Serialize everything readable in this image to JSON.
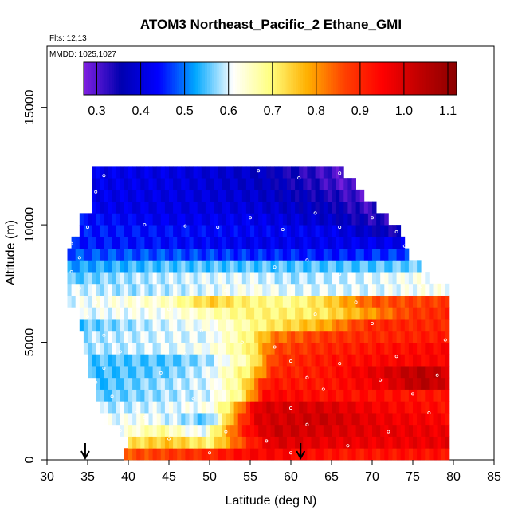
{
  "chart_data": {
    "type": "heatmap",
    "title": "ATOM3 Northeast_Pacific_2 Ethane_GMI",
    "annotations": {
      "flights": "Flts: 12,13",
      "dates": "MMDD: 1025,1027"
    },
    "xlabel": "Latitude (deg N)",
    "ylabel": "Altitude (m)",
    "xlim": [
      30,
      85
    ],
    "ylim": [
      0,
      17600
    ],
    "x_ticks": [
      30,
      35,
      40,
      45,
      50,
      55,
      60,
      65,
      70,
      75,
      80,
      85
    ],
    "y_ticks": [
      0,
      5000,
      10000,
      15000
    ],
    "colorbar": {
      "range": [
        0.27,
        1.12
      ],
      "tick_labels": [
        "0.3",
        "0.4",
        "0.5",
        "0.6",
        "0.7",
        "0.8",
        "0.9",
        "1.0",
        "1.1"
      ],
      "tick_values": [
        0.3,
        0.4,
        0.5,
        0.6,
        0.7,
        0.8,
        0.9,
        1.0,
        1.1
      ],
      "colors": [
        "#8020e0",
        "#0000b0",
        "#0000ff",
        "#00a8ff",
        "#ffffff",
        "#ffff80",
        "#ffb000",
        "#ff4000",
        "#ff0000",
        "#c00000",
        "#8b0000"
      ]
    },
    "arrow_markers_lat": [
      34.7,
      61.2
    ],
    "altitude_bins_m": [
      0,
      500,
      1000,
      1500,
      2000,
      2500,
      3000,
      3500,
      4000,
      4500,
      5000,
      5500,
      6000,
      6500,
      7000,
      7500,
      8000,
      8500,
      9000,
      9500,
      10000,
      10500,
      11000,
      11500,
      12000,
      12500
    ],
    "lat_extent_by_bin": [
      [
        39.5,
        79.5
      ],
      [
        40.0,
        79.5
      ],
      [
        39.0,
        79.5
      ],
      [
        37.0,
        79.5
      ],
      [
        36.5,
        79.5
      ],
      [
        36.0,
        79.5
      ],
      [
        36.0,
        79.5
      ],
      [
        35.0,
        79.5
      ],
      [
        35.0,
        79.5
      ],
      [
        34.5,
        79.5
      ],
      [
        34.5,
        79.5
      ],
      [
        34.0,
        79.5
      ],
      [
        34.0,
        79.5
      ],
      [
        32.5,
        79.5
      ],
      [
        32.5,
        79.5
      ],
      [
        32.5,
        77.0
      ],
      [
        32.5,
        76.0
      ],
      [
        32.5,
        74.5
      ],
      [
        33.0,
        74.0
      ],
      [
        34.0,
        73.5
      ],
      [
        34.0,
        72.0
      ],
      [
        35.5,
        70.5
      ],
      [
        35.5,
        69.0
      ],
      [
        35.5,
        68.0
      ],
      [
        35.5,
        66.5
      ]
    ],
    "value_profiles": [
      [
        [
          39.5,
          0.85
        ],
        [
          46,
          0.88
        ],
        [
          50,
          0.9
        ],
        [
          55,
          0.95
        ],
        [
          60,
          0.95
        ],
        [
          67,
          0.92
        ],
        [
          75,
          0.93
        ],
        [
          79.5,
          0.93
        ]
      ],
      [
        [
          40,
          0.72
        ],
        [
          45,
          0.76
        ],
        [
          50,
          0.7
        ],
        [
          55,
          0.9
        ],
        [
          58,
          1.0
        ],
        [
          64,
          0.98
        ],
        [
          72,
          0.97
        ],
        [
          79.5,
          0.98
        ]
      ],
      [
        [
          39,
          0.62
        ],
        [
          44,
          0.68
        ],
        [
          49,
          0.6
        ],
        [
          55,
          0.95
        ],
        [
          58,
          1.02
        ],
        [
          64,
          1.0
        ],
        [
          72,
          0.98
        ],
        [
          79.5,
          0.97
        ]
      ],
      [
        [
          37,
          0.6
        ],
        [
          42,
          0.62
        ],
        [
          47,
          0.58
        ],
        [
          50,
          0.55
        ],
        [
          53,
          0.8
        ],
        [
          56,
          1.0
        ],
        [
          64,
          1.02
        ],
        [
          72,
          0.97
        ],
        [
          79.5,
          0.95
        ]
      ],
      [
        [
          36.5,
          0.58
        ],
        [
          45,
          0.6
        ],
        [
          50,
          0.62
        ],
        [
          53,
          0.75
        ],
        [
          56,
          1.0
        ],
        [
          64,
          1.0
        ],
        [
          72,
          0.95
        ],
        [
          79.5,
          0.93
        ]
      ],
      [
        [
          36,
          0.55
        ],
        [
          45,
          0.58
        ],
        [
          50,
          0.6
        ],
        [
          54,
          0.7
        ],
        [
          57,
          0.95
        ],
        [
          64,
          0.93
        ],
        [
          72,
          0.93
        ],
        [
          79.5,
          0.92
        ]
      ],
      [
        [
          36,
          0.54
        ],
        [
          45,
          0.58
        ],
        [
          50,
          0.6
        ],
        [
          54,
          0.7
        ],
        [
          57,
          0.92
        ],
        [
          64,
          0.92
        ],
        [
          72,
          0.98
        ],
        [
          76,
          1.05
        ],
        [
          79.5,
          1.0
        ]
      ],
      [
        [
          35,
          0.54
        ],
        [
          45,
          0.56
        ],
        [
          50,
          0.6
        ],
        [
          55,
          0.72
        ],
        [
          58,
          0.9
        ],
        [
          64,
          0.92
        ],
        [
          72,
          1.0
        ],
        [
          76,
          1.05
        ],
        [
          79.5,
          1.0
        ]
      ],
      [
        [
          35,
          0.55
        ],
        [
          45,
          0.55
        ],
        [
          50,
          0.58
        ],
        [
          55,
          0.68
        ],
        [
          58,
          0.88
        ],
        [
          64,
          0.92
        ],
        [
          72,
          0.95
        ],
        [
          79.5,
          0.95
        ]
      ],
      [
        [
          34.5,
          0.58
        ],
        [
          45,
          0.6
        ],
        [
          50,
          0.62
        ],
        [
          55,
          0.7
        ],
        [
          58,
          0.86
        ],
        [
          64,
          0.9
        ],
        [
          72,
          0.93
        ],
        [
          79.5,
          0.95
        ]
      ],
      [
        [
          34.5,
          0.58
        ],
        [
          45,
          0.6
        ],
        [
          50,
          0.6
        ],
        [
          55,
          0.7
        ],
        [
          58,
          0.82
        ],
        [
          64,
          0.88
        ],
        [
          72,
          0.9
        ],
        [
          79.5,
          0.92
        ]
      ],
      [
        [
          34,
          0.55
        ],
        [
          45,
          0.6
        ],
        [
          50,
          0.62
        ],
        [
          55,
          0.68
        ],
        [
          58,
          0.72
        ],
        [
          64,
          0.78
        ],
        [
          70,
          0.9
        ],
        [
          79.5,
          0.9
        ]
      ],
      [
        [
          34,
          0.6
        ],
        [
          45,
          0.62
        ],
        [
          50,
          0.66
        ],
        [
          55,
          0.7
        ],
        [
          58,
          0.7
        ],
        [
          64,
          0.72
        ],
        [
          70,
          0.8
        ],
        [
          75,
          0.88
        ],
        [
          79.5,
          0.9
        ]
      ],
      [
        [
          32.5,
          0.6
        ],
        [
          45,
          0.65
        ],
        [
          50,
          0.75
        ],
        [
          55,
          0.7
        ],
        [
          60,
          0.68
        ],
        [
          65,
          0.75
        ],
        [
          70,
          0.85
        ],
        [
          79.5,
          0.88
        ]
      ],
      [
        [
          32.5,
          0.6
        ],
        [
          40,
          0.58
        ],
        [
          50,
          0.6
        ],
        [
          55,
          0.62
        ],
        [
          60,
          0.6
        ],
        [
          70,
          0.6
        ],
        [
          77,
          0.62
        ]
      ],
      [
        [
          32.5,
          0.55
        ],
        [
          40,
          0.58
        ],
        [
          50,
          0.6
        ],
        [
          55,
          0.6
        ],
        [
          60,
          0.58
        ],
        [
          70,
          0.6
        ],
        [
          76,
          0.62
        ]
      ],
      [
        [
          32.5,
          0.52
        ],
        [
          45,
          0.55
        ],
        [
          55,
          0.55
        ],
        [
          60,
          0.55
        ],
        [
          70,
          0.55
        ],
        [
          74.5,
          0.56
        ]
      ],
      [
        [
          33,
          0.48
        ],
        [
          45,
          0.48
        ],
        [
          55,
          0.46
        ],
        [
          65,
          0.45
        ],
        [
          74,
          0.47
        ]
      ],
      [
        [
          34,
          0.45
        ],
        [
          45,
          0.44
        ],
        [
          55,
          0.42
        ],
        [
          65,
          0.42
        ],
        [
          73.5,
          0.42
        ]
      ],
      [
        [
          34,
          0.45
        ],
        [
          45,
          0.44
        ],
        [
          55,
          0.43
        ],
        [
          65,
          0.42
        ],
        [
          72,
          0.35
        ]
      ],
      [
        [
          35.5,
          0.44
        ],
        [
          45,
          0.42
        ],
        [
          55,
          0.42
        ],
        [
          65,
          0.38
        ],
        [
          70.5,
          0.33
        ]
      ],
      [
        [
          35.5,
          0.42
        ],
        [
          45,
          0.41
        ],
        [
          55,
          0.4
        ],
        [
          65,
          0.36
        ],
        [
          69,
          0.32
        ]
      ],
      [
        [
          35.5,
          0.42
        ],
        [
          45,
          0.41
        ],
        [
          55,
          0.39
        ],
        [
          65,
          0.34
        ],
        [
          68,
          0.31
        ]
      ],
      [
        [
          35.5,
          0.42
        ],
        [
          45,
          0.41
        ],
        [
          55,
          0.38
        ],
        [
          62,
          0.34
        ],
        [
          66.5,
          0.3
        ]
      ],
      [
        [
          35.5,
          0.42
        ],
        [
          45,
          0.41
        ],
        [
          55,
          0.38
        ],
        [
          62,
          0.33
        ],
        [
          66.5,
          0.3
        ]
      ]
    ],
    "obs_points": [
      [
        36,
        550
      ],
      [
        39,
        1250
      ],
      [
        41,
        2000
      ],
      [
        38,
        2700
      ],
      [
        36,
        3300
      ],
      [
        37,
        3900
      ],
      [
        39,
        4600
      ],
      [
        37,
        5300
      ],
      [
        35,
        6100
      ],
      [
        36,
        6700
      ],
      [
        34,
        7300
      ],
      [
        33,
        8000
      ],
      [
        34,
        8600
      ],
      [
        33,
        9200
      ],
      [
        35,
        9900
      ],
      [
        34,
        10700
      ],
      [
        36,
        11400
      ],
      [
        37,
        12100
      ],
      [
        42,
        10000
      ],
      [
        47,
        9950
      ],
      [
        51,
        9900
      ],
      [
        55,
        10300
      ],
      [
        59,
        9800
      ],
      [
        63,
        10500
      ],
      [
        66,
        9900
      ],
      [
        70,
        10300
      ],
      [
        73,
        9700
      ],
      [
        74,
        9100
      ],
      [
        56,
        12300
      ],
      [
        61,
        12000
      ],
      [
        66,
        12200
      ],
      [
        45,
        6400
      ],
      [
        49,
        5500
      ],
      [
        54,
        5000
      ],
      [
        58,
        4800
      ],
      [
        60,
        4200
      ],
      [
        62,
        3500
      ],
      [
        64,
        3000
      ],
      [
        60,
        2200
      ],
      [
        62,
        1500
      ],
      [
        57,
        800
      ],
      [
        60,
        300
      ],
      [
        67,
        600
      ],
      [
        72,
        1200
      ],
      [
        77,
        2000
      ],
      [
        75,
        2800
      ],
      [
        78,
        3600
      ],
      [
        73,
        4400
      ],
      [
        79,
        5100
      ],
      [
        70,
        5800
      ],
      [
        68,
        6700
      ],
      [
        76,
        7400
      ],
      [
        66,
        7900
      ],
      [
        62,
        8500
      ],
      [
        58,
        8200
      ],
      [
        52,
        7200
      ],
      [
        47,
        4500
      ],
      [
        44,
        3700
      ],
      [
        42,
        1800
      ],
      [
        52,
        1200
      ],
      [
        48,
        2600
      ],
      [
        50,
        300
      ],
      [
        45,
        900
      ],
      [
        71,
        3400
      ],
      [
        66,
        4100
      ],
      [
        63,
        6200
      ]
    ]
  }
}
